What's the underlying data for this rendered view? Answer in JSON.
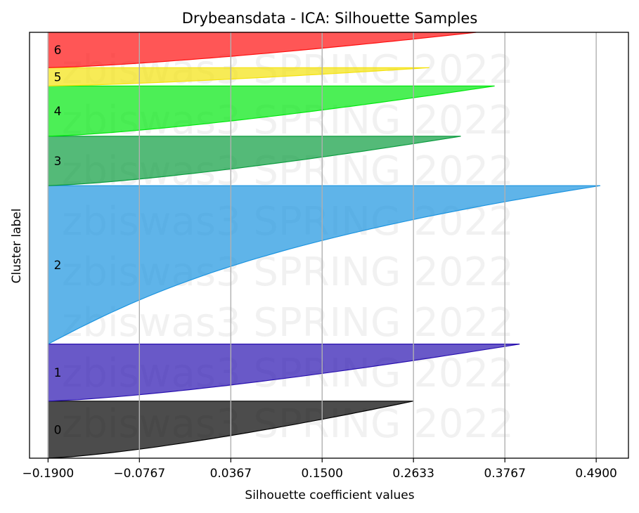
{
  "chart_data": {
    "type": "area",
    "title": "Drybeansdata - ICA: Silhouette Samples",
    "xlabel": "Silhouette coefficient values",
    "ylabel": "Cluster label",
    "xlim": [
      -0.213,
      0.53
    ],
    "x_ticks": [
      "−0.1900",
      "−0.0767",
      "0.0367",
      "0.1500",
      "0.2633",
      "0.3767",
      "0.4900"
    ],
    "x_tick_values": [
      -0.19,
      -0.0767,
      0.0367,
      0.15,
      0.2633,
      0.3767,
      0.49
    ],
    "grid": "vertical",
    "watermark": "zbiswas3 SPRING 2022",
    "clusters": [
      {
        "label": "0",
        "color": "#000000",
        "y_bottom_frac": 0.0,
        "y_top_frac": 0.134,
        "min": -0.19,
        "max": 0.263
      },
      {
        "label": "1",
        "color": "#2a12b0",
        "y_bottom_frac": 0.134,
        "y_top_frac": 0.268,
        "min": -0.19,
        "max": 0.395
      },
      {
        "label": "2",
        "color": "#1b94e0",
        "y_bottom_frac": 0.268,
        "y_top_frac": 0.64,
        "min": -0.19,
        "max": 0.495
      },
      {
        "label": "3",
        "color": "#0b9c3f",
        "y_bottom_frac": 0.64,
        "y_top_frac": 0.756,
        "min": -0.19,
        "max": 0.322
      },
      {
        "label": "4",
        "color": "#00e80e",
        "y_bottom_frac": 0.756,
        "y_top_frac": 0.874,
        "min": -0.19,
        "max": 0.364
      },
      {
        "label": "5",
        "color": "#f4e20e",
        "y_bottom_frac": 0.874,
        "y_top_frac": 0.917,
        "min": -0.19,
        "max": 0.283
      },
      {
        "label": "6",
        "color": "#ff0e0e",
        "y_bottom_frac": 0.917,
        "y_top_frac": 1.0,
        "min": -0.19,
        "max": 0.341
      }
    ]
  }
}
